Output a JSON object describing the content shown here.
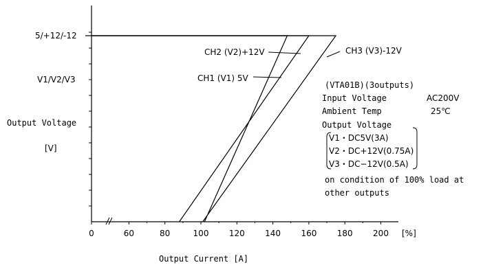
{
  "chart_data": {
    "type": "line",
    "y_axis": {
      "title_line1": "Output Voltage",
      "title_line2": "[V]",
      "labels": [
        {
          "id": "rated",
          "text": "5/+12/-12"
        },
        {
          "id": "vlabel",
          "text": "V1/V2/V3"
        }
      ]
    },
    "x_axis": {
      "title": "Output Current [A]",
      "unit": "[%]",
      "ticks": [
        "0",
        "60",
        "80",
        "100",
        "120",
        "140",
        "160",
        "180",
        "200"
      ],
      "break_between": [
        "0",
        "60"
      ]
    },
    "series": [
      {
        "name": "CH1 (V1) 5V",
        "points": [
          [
            0,
            1
          ],
          [
            148,
            1
          ],
          [
            102,
            0
          ]
        ]
      },
      {
        "name": "CH2 (V2)+12V",
        "points": [
          [
            0,
            1
          ],
          [
            160,
            1
          ],
          [
            88,
            0
          ]
        ]
      },
      {
        "name": "CH3 (V3)-12V",
        "points": [
          [
            0,
            1
          ],
          [
            175,
            1
          ],
          [
            101,
            0
          ]
        ]
      }
    ],
    "annotation": {
      "model": "(VTA01B)(3outputs)",
      "input_label": "Input Voltage",
      "input_value": "AC200V",
      "temp_label": "Ambient Temp",
      "temp_value": "25℃",
      "output_header": "Output Voltage",
      "outputs": [
        "V1・DC5V(3A)",
        "V2・DC+12V(0.75A)",
        "V3・DC−12V(0.5A)"
      ],
      "condition_line1": "on condition of 100% load at",
      "condition_line2": "other outputs"
    }
  }
}
